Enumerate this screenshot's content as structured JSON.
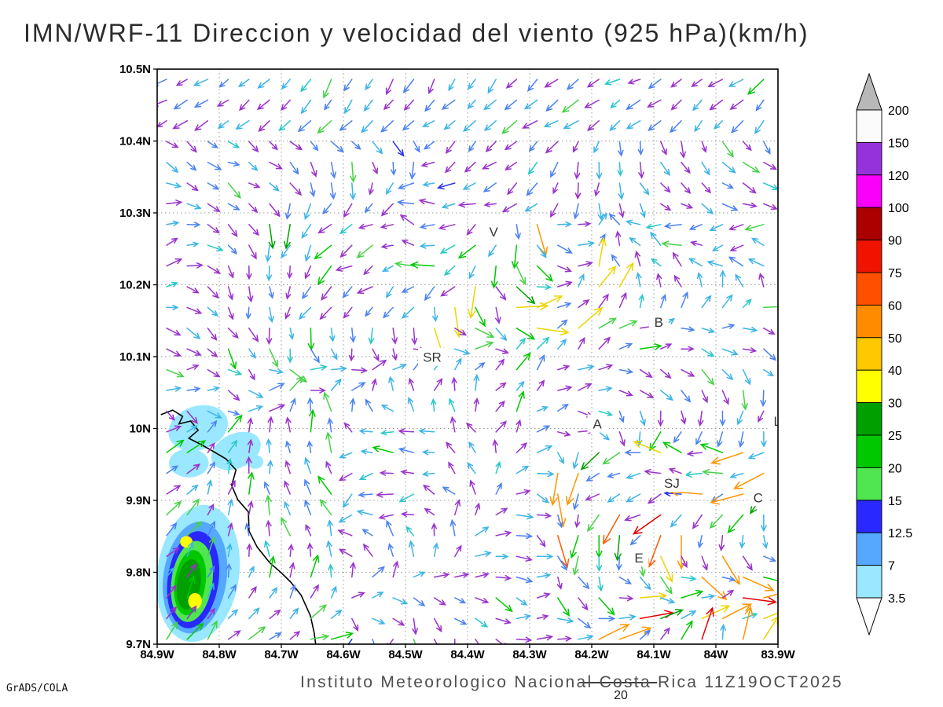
{
  "title": "IMN/WRF-11 Direccion y velocidad del viento (925 hPa)(km/h)",
  "footer": {
    "institute": "Instituto Meteorologico Nacional Costa Rica 11Z19OCT2025",
    "credit": "GrADS/COLA"
  },
  "chart_data": {
    "type": "vector_field_map",
    "title": "IMN/WRF-11 Direccion y velocidad del viento (925 hPa)(km/h)",
    "variable": "Direccion y velocidad del viento",
    "level": "925 hPa",
    "units": "km/h",
    "valid_time": "11Z19OCT2025",
    "reference_vector": "20",
    "x_axis": {
      "labels": [
        "84.9W",
        "84.8W",
        "84.7W",
        "84.6W",
        "84.5W",
        "84.4W",
        "84.3W",
        "84.2W",
        "84.1W",
        "84W",
        "83.9W"
      ]
    },
    "y_axis": {
      "labels": [
        "10.5N",
        "10.4N",
        "10.3N",
        "10.2N",
        "10.1N",
        "10N",
        "9.9N",
        "9.8N",
        "9.7N"
      ]
    },
    "lon_range_deg_w": [
      84.9,
      83.9
    ],
    "lat_range_deg_n": [
      9.7,
      10.5
    ],
    "speed_levels": [
      3.5,
      7,
      12.5,
      15,
      20,
      25,
      30,
      40,
      50,
      60,
      75,
      90,
      100,
      120,
      150,
      200
    ],
    "colorbar": {
      "labels": [
        "200",
        "150",
        "120",
        "100",
        "90",
        "75",
        "60",
        "50",
        "40",
        "30",
        "25",
        "20",
        "15",
        "12.5",
        "7",
        "3.5"
      ],
      "band_colors": [
        "#fbfbfb",
        "#9632dc",
        "#fa00fa",
        "#aa0000",
        "#f01400",
        "#ff5000",
        "#ff8c00",
        "#ffc800",
        "#ffff00",
        "#00a000",
        "#00c800",
        "#50e650",
        "#2828ff",
        "#55a8ff",
        "#9ae8ff"
      ],
      "over_color": "#b8b8b8",
      "under_color": "#ffffff"
    },
    "stations": [
      {
        "label": "V",
        "fx": 0.542,
        "fy": 0.283
      },
      {
        "label": "B",
        "fx": 0.808,
        "fy": 0.44
      },
      {
        "label": "SR",
        "fx": 0.443,
        "fy": 0.501
      },
      {
        "label": "A",
        "fx": 0.709,
        "fy": 0.617
      },
      {
        "label": "SJ",
        "fx": 0.829,
        "fy": 0.72
      },
      {
        "label": "C",
        "fx": 0.968,
        "fy": 0.745
      },
      {
        "label": "E",
        "fx": 0.776,
        "fy": 0.85
      },
      {
        "label": "L",
        "fx": 0.999,
        "fy": 0.612
      }
    ],
    "coastline": [
      [
        0.006,
        0.601
      ],
      [
        0.025,
        0.593
      ],
      [
        0.041,
        0.604
      ],
      [
        0.035,
        0.617
      ],
      [
        0.054,
        0.612
      ],
      [
        0.066,
        0.628
      ],
      [
        0.051,
        0.642
      ],
      [
        0.071,
        0.653
      ],
      [
        0.089,
        0.664
      ],
      [
        0.111,
        0.678
      ],
      [
        0.127,
        0.697
      ],
      [
        0.12,
        0.724
      ],
      [
        0.13,
        0.749
      ],
      [
        0.147,
        0.77
      ],
      [
        0.148,
        0.803
      ],
      [
        0.161,
        0.831
      ],
      [
        0.181,
        0.858
      ],
      [
        0.2,
        0.876
      ],
      [
        0.215,
        0.892
      ],
      [
        0.232,
        0.915
      ],
      [
        0.247,
        0.951
      ],
      [
        0.253,
        0.981
      ],
      [
        0.256,
        1.005
      ]
    ],
    "precip_regions": [
      {
        "cx": 0.066,
        "cy": 0.624,
        "rx": 0.049,
        "ry": 0.038,
        "rot": -18,
        "color": "pale"
      },
      {
        "cx": 0.127,
        "cy": 0.664,
        "rx": 0.042,
        "ry": 0.03,
        "rot": -25,
        "color": "pale"
      },
      {
        "cx": 0.051,
        "cy": 0.685,
        "rx": 0.032,
        "ry": 0.025,
        "rot": 0,
        "color": "pale"
      },
      {
        "cx": 0.158,
        "cy": 0.683,
        "rx": 0.013,
        "ry": 0.012,
        "rot": 0,
        "color": "pale"
      },
      {
        "cx": 0.066,
        "cy": 0.877,
        "rx": 0.066,
        "ry": 0.12,
        "rot": 8,
        "color": "pale"
      },
      {
        "cx": 0.061,
        "cy": 0.884,
        "rx": 0.051,
        "ry": 0.098,
        "rot": 8,
        "color": "sky"
      },
      {
        "cx": 0.058,
        "cy": 0.888,
        "rx": 0.041,
        "ry": 0.085,
        "rot": 8,
        "color": "blue"
      },
      {
        "cx": 0.056,
        "cy": 0.891,
        "rx": 0.033,
        "ry": 0.071,
        "rot": 8,
        "color": "lgreen"
      },
      {
        "cx": 0.053,
        "cy": 0.893,
        "rx": 0.025,
        "ry": 0.057,
        "rot": 8,
        "color": "green"
      },
      {
        "cx": 0.051,
        "cy": 0.896,
        "rx": 0.019,
        "ry": 0.044,
        "rot": 8,
        "color": "dgreen"
      },
      {
        "cx": 0.047,
        "cy": 0.822,
        "rx": 0.01,
        "ry": 0.01,
        "rot": 0,
        "color": "yellow"
      },
      {
        "cx": 0.061,
        "cy": 0.925,
        "rx": 0.011,
        "ry": 0.014,
        "rot": 0,
        "color": "yellow"
      }
    ],
    "palette": {
      "pale": "#9ae8ff",
      "sky": "#55a8ff",
      "blue": "#2828ff",
      "lgreen": "#50e650",
      "green": "#00c800",
      "dgreen": "#00a000",
      "yellow": "#ffff00"
    }
  }
}
